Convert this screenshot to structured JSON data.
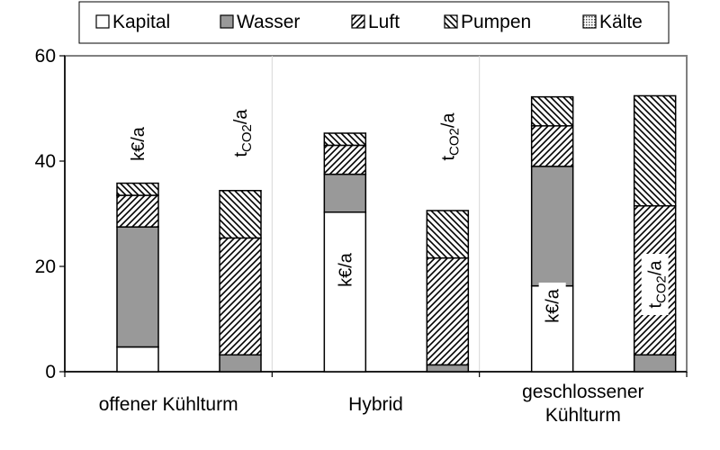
{
  "chart_data": {
    "type": "bar",
    "stacked": true,
    "categories": [
      "offener Kühlturm",
      "Hybrid",
      "geschlossener Kühlturm"
    ],
    "bars": [
      {
        "group": 0,
        "label": "k€/a",
        "values": {
          "Kapital": 4.7,
          "Wasser": 22.8,
          "Luft": 6.0,
          "Pumpen": 2.3
        }
      },
      {
        "group": 0,
        "label": "tCO2/a",
        "values": {
          "Kapital": 0,
          "Wasser": 3.2,
          "Luft": 22.2,
          "Pumpen": 9.0
        }
      },
      {
        "group": 1,
        "label": "k€/a",
        "values": {
          "Kapital": 30.3,
          "Wasser": 7.2,
          "Luft": 5.5,
          "Pumpen": 2.3
        }
      },
      {
        "group": 1,
        "label": "tCO2/a",
        "values": {
          "Kapital": 0,
          "Wasser": 1.3,
          "Luft": 20.3,
          "Pumpen": 9.0
        }
      },
      {
        "group": 2,
        "label": "k€/a",
        "values": {
          "Kapital": 16.3,
          "Wasser": 22.7,
          "Luft": 7.7,
          "Pumpen": 5.5
        }
      },
      {
        "group": 2,
        "label": "tCO2/a",
        "values": {
          "Kapital": 0,
          "Wasser": 3.2,
          "Luft": 28.3,
          "Pumpen": 20.9
        }
      }
    ],
    "series": [
      {
        "name": "Kapital",
        "color": "#ffffff",
        "pattern": "solid"
      },
      {
        "name": "Wasser",
        "color": "#999999",
        "pattern": "solid"
      },
      {
        "name": "Luft",
        "color": "#ffffff",
        "pattern": "hatch-forward"
      },
      {
        "name": "Pumpen",
        "color": "#ffffff",
        "pattern": "hatch-back"
      },
      {
        "name": "Kälte",
        "color": "#ffffff",
        "pattern": "dots"
      }
    ],
    "yticks": [
      0,
      20,
      40,
      60
    ],
    "ylim": [
      0,
      60
    ],
    "grid": false,
    "legend": "top",
    "bar_labels": {
      "keur": "k€/a",
      "tco2_main": "t",
      "tco2_sub": "CO2",
      "tco2_unit": "/a"
    },
    "category_label_lines": [
      [
        "offener Kühlturm"
      ],
      [
        "Hybrid"
      ],
      [
        "geschlossener",
        "Kühlturm"
      ]
    ]
  }
}
